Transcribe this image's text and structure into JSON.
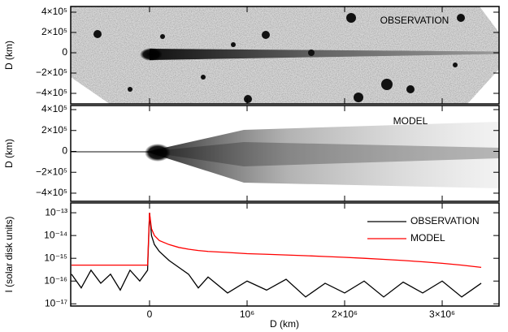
{
  "chart_data": [
    {
      "type": "image",
      "annotation": "OBSERVATION",
      "ylabel": "D (km)",
      "ylim": [
        -504000,
        456000
      ],
      "yticks": [
        {
          "value": 400000,
          "label": "4×10⁵"
        },
        {
          "value": 200000,
          "label": "2×10⁵"
        },
        0,
        {
          "value": -200000,
          "label": "−2×10⁵"
        },
        {
          "value": -400000,
          "label": "−4×10⁵"
        }
      ]
    },
    {
      "type": "image",
      "annotation": "MODEL",
      "ylabel": "D (km)",
      "ylim": [
        -478000,
        439000
      ],
      "yticks": [
        {
          "value": 400000,
          "label": "4×10⁵"
        },
        {
          "value": 200000,
          "label": "2×10⁵"
        },
        0,
        {
          "value": -200000,
          "label": "−2×10⁵"
        },
        {
          "value": -400000,
          "label": "−4×10⁵"
        }
      ]
    },
    {
      "type": "line",
      "xlabel": "D (km)",
      "ylabel": "I (solar disk units)",
      "log_y": true,
      "legend": "upper right",
      "xlim": [
        -808000,
        3583000
      ],
      "xticks": [
        0,
        {
          "value": 1000000,
          "label": "10⁶"
        },
        {
          "value": 2000000,
          "label": "2×10⁶"
        },
        {
          "value": 3000000,
          "label": "3×10⁶"
        }
      ],
      "ylim": [
        8e-18,
        2.7e-13
      ],
      "yticks": [
        {
          "value": 1e-13,
          "label": "10⁻¹³"
        },
        {
          "value": 1e-14,
          "label": "10⁻¹⁴"
        },
        {
          "value": 1e-15,
          "label": "10⁻¹⁵"
        },
        {
          "value": 1e-16,
          "label": "10⁻¹⁶"
        },
        {
          "value": 1e-17,
          "label": "10⁻¹⁷"
        }
      ],
      "x": [
        -800000,
        -700000,
        -600000,
        -500000,
        -400000,
        -300000,
        -200000,
        -100000,
        -20000,
        0,
        20000,
        50000,
        100000,
        200000,
        300000,
        400000,
        500000,
        600000,
        800000,
        1000000,
        1200000,
        1400000,
        1600000,
        1800000,
        2000000,
        2200000,
        2400000,
        2600000,
        2800000,
        3000000,
        3200000,
        3400000
      ],
      "series": [
        {
          "name": "OBSERVATION",
          "color": "#000000",
          "values": [
            2e-16,
            5e-17,
            3e-16,
            8e-17,
            2e-16,
            4e-17,
            3e-16,
            1e-16,
            3e-16,
            1e-13,
            1e-14,
            4e-15,
            2e-15,
            8e-16,
            4e-16,
            2e-16,
            5e-17,
            1.5e-16,
            3e-17,
            1e-16,
            4e-17,
            1.2e-16,
            2e-17,
            8e-17,
            3e-17,
            1e-16,
            2e-17,
            9e-17,
            3e-17,
            1e-16,
            2e-17,
            8e-17
          ]
        },
        {
          "name": "MODEL",
          "color": "#ff0000",
          "values": [
            5e-16,
            5e-16,
            5e-16,
            5e-16,
            5e-16,
            5e-16,
            5e-16,
            5e-16,
            5e-16,
            1e-13,
            2e-14,
            1e-14,
            6e-15,
            4e-15,
            3e-15,
            2.5e-15,
            2.2e-15,
            2e-15,
            1.8e-15,
            1.6e-15,
            1.5e-15,
            1.4e-15,
            1.3e-15,
            1.2e-15,
            1.1e-15,
            1e-15,
            9e-16,
            8e-16,
            7e-16,
            6e-16,
            5e-16,
            4e-16
          ]
        }
      ]
    }
  ]
}
